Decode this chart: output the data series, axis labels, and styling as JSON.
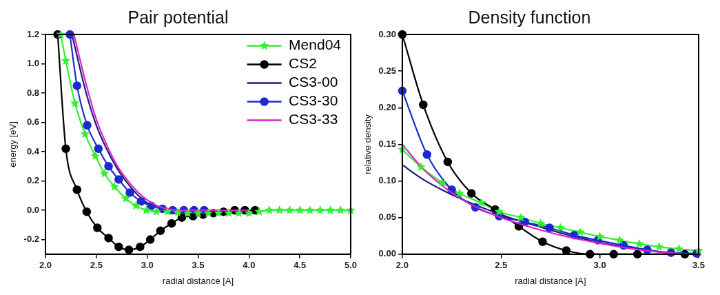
{
  "chart_data": [
    {
      "type": "line",
      "title": "Pair potential",
      "xlabel": "radial distance [A]",
      "ylabel": "energy [eV]",
      "xlim": [
        2,
        5
      ],
      "ylim": [
        -0.3,
        1.2
      ],
      "xticks": [
        {
          "value": 2,
          "label": "2.0"
        },
        {
          "value": 2.5,
          "label": "2.5"
        },
        {
          "value": 3,
          "label": "3.0"
        },
        {
          "value": 3.5,
          "label": "3.5"
        },
        {
          "value": 4,
          "label": "4.0"
        },
        {
          "value": 4.5,
          "label": "4.5"
        },
        {
          "value": 5,
          "label": "5.0"
        }
      ],
      "yticks": [
        {
          "value": -0.2,
          "label": "-0.2"
        },
        {
          "value": 0,
          "label": "0.0"
        },
        {
          "value": 0.2,
          "label": "0.2"
        },
        {
          "value": 0.4,
          "label": "0.4"
        },
        {
          "value": 0.6,
          "label": "0.6"
        },
        {
          "value": 0.8,
          "label": "0.8"
        },
        {
          "value": 1,
          "label": "1.0"
        },
        {
          "value": 1.2,
          "label": "1.2"
        }
      ],
      "grid": false,
      "legend": "top right",
      "series": [
        {
          "name": "Mend04",
          "color": "#33ee33",
          "marker": "star",
          "x": [
            2.15,
            2.2,
            2.29,
            2.39,
            2.49,
            2.58,
            2.68,
            2.79,
            2.89,
            2.99,
            3.09,
            3.2,
            3.3,
            3.4,
            3.5,
            3.6,
            3.7,
            3.8,
            3.9,
            4.0,
            4.1,
            4.2,
            4.3,
            4.4,
            4.5,
            4.6,
            4.7,
            4.8,
            4.9,
            5.0
          ],
          "values": [
            1.2,
            1.02,
            0.73,
            0.52,
            0.37,
            0.25,
            0.16,
            0.08,
            0.03,
            0.0,
            -0.01,
            -0.01,
            -0.015,
            -0.02,
            -0.02,
            -0.02,
            -0.02,
            -0.02,
            -0.02,
            -0.02,
            -0.01,
            0,
            0,
            0,
            0,
            0,
            0,
            0,
            0,
            0
          ]
        },
        {
          "name": "CS2",
          "color": "#000000",
          "marker": "circle",
          "x": [
            2.12,
            2.2,
            2.31,
            2.405,
            2.51,
            2.62,
            2.72,
            2.82,
            2.93,
            3.03,
            3.13,
            3.24,
            3.34,
            3.45,
            3.55,
            3.65,
            3.75,
            3.86,
            3.96,
            4.06
          ],
          "values": [
            1.2,
            0.42,
            0.14,
            -0.01,
            -0.12,
            -0.19,
            -0.25,
            -0.27,
            -0.25,
            -0.2,
            -0.14,
            -0.09,
            -0.05,
            -0.04,
            -0.03,
            -0.02,
            -0.01,
            0,
            0,
            0
          ]
        },
        {
          "name": "CS3-00",
          "color": "#1a1a80",
          "marker": "none",
          "x": [
            2.26,
            2.4,
            2.5,
            2.6,
            2.7,
            2.8,
            2.9,
            3.0,
            3.1,
            3.2,
            3.3,
            4.0
          ],
          "values": [
            1.2,
            0.8,
            0.58,
            0.42,
            0.29,
            0.19,
            0.11,
            0.05,
            0.02,
            0.005,
            0,
            0
          ]
        },
        {
          "name": "CS3-30",
          "color": "#1a2ad0",
          "marker": "circle",
          "x": [
            2.24,
            2.31,
            2.41,
            2.52,
            2.62,
            2.72,
            2.83,
            2.94,
            3.04,
            3.15,
            3.25,
            3.36,
            3.46,
            3.56
          ],
          "values": [
            1.2,
            0.85,
            0.58,
            0.42,
            0.3,
            0.21,
            0.12,
            0.06,
            0.03,
            0.01,
            0,
            0,
            0,
            0
          ]
        },
        {
          "name": "CS3-33",
          "color": "#dd22cc",
          "marker": "none",
          "x": [
            2.28,
            2.4,
            2.5,
            2.6,
            2.7,
            2.8,
            2.9,
            3.0,
            3.1,
            3.2,
            3.3,
            4.0
          ],
          "values": [
            1.2,
            0.86,
            0.62,
            0.45,
            0.31,
            0.21,
            0.13,
            0.07,
            0.03,
            0.01,
            0,
            0
          ]
        }
      ]
    },
    {
      "type": "line",
      "title": "Density function",
      "xlabel": "radial distance [A]",
      "ylabel": "relative density",
      "xlim": [
        2,
        3.5
      ],
      "ylim": [
        0,
        0.3
      ],
      "xticks": [
        {
          "value": 2,
          "label": "2.0"
        },
        {
          "value": 2.5,
          "label": "2.5"
        },
        {
          "value": 3,
          "label": "3.0"
        },
        {
          "value": 3.5,
          "label": "3.5"
        }
      ],
      "yticks": [
        {
          "value": 0,
          "label": "0.00"
        },
        {
          "value": 0.05,
          "label": "0.05"
        },
        {
          "value": 0.1,
          "label": "0.10"
        },
        {
          "value": 0.15,
          "label": "0.15"
        },
        {
          "value": 0.2,
          "label": "0.20"
        },
        {
          "value": 0.25,
          "label": "0.25"
        },
        {
          "value": 0.3,
          "label": "0.30"
        }
      ],
      "grid": false,
      "series": [
        {
          "color": "#33ee33",
          "marker": "star",
          "x": [
            2.0,
            2.095,
            2.2,
            2.29,
            2.4,
            2.49,
            2.6,
            2.7,
            2.8,
            2.9,
            3.0,
            3.1,
            3.2,
            3.3,
            3.4,
            3.5
          ],
          "values": [
            0.143,
            0.119,
            0.098,
            0.083,
            0.07,
            0.058,
            0.05,
            0.042,
            0.036,
            0.03,
            0.024,
            0.019,
            0.014,
            0.01,
            0.007,
            0.005
          ]
        },
        {
          "color": "#000000",
          "marker": "circle",
          "x": [
            2.0,
            2.106,
            2.23,
            2.35,
            2.47,
            2.59,
            2.71,
            2.83,
            2.95,
            3.07,
            3.19,
            3.43
          ],
          "values": [
            0.3,
            0.204,
            0.126,
            0.083,
            0.061,
            0.038,
            0.017,
            0.005,
            0,
            0,
            0,
            0
          ]
        },
        {
          "color": "#1a1a80",
          "marker": "none",
          "x": [
            2.0,
            2.1,
            2.2,
            2.3,
            2.4,
            2.5,
            2.6,
            2.7,
            2.8,
            2.9,
            3.0,
            3.1,
            3.2,
            3.3,
            3.4,
            3.5
          ],
          "values": [
            0.122,
            0.103,
            0.088,
            0.075,
            0.064,
            0.054,
            0.045,
            0.037,
            0.029,
            0.022,
            0.016,
            0.011,
            0.007,
            0.003,
            0.001,
            0
          ]
        },
        {
          "color": "#1a2ad0",
          "marker": "circle",
          "x": [
            2.0,
            2.125,
            2.25,
            2.37,
            2.49,
            2.62,
            2.745,
            2.87,
            2.99,
            3.12,
            3.24,
            3.36,
            3.49
          ],
          "values": [
            0.223,
            0.136,
            0.088,
            0.064,
            0.052,
            0.044,
            0.036,
            0.026,
            0.019,
            0.012,
            0.006,
            0.002,
            0.001
          ]
        },
        {
          "color": "#dd22cc",
          "marker": "none",
          "x": [
            2.0,
            2.1,
            2.2,
            2.3,
            2.4,
            2.5,
            2.6,
            2.7,
            2.8,
            2.9,
            3.0,
            3.1,
            3.2,
            3.3,
            3.4,
            3.5
          ],
          "values": [
            0.15,
            0.118,
            0.094,
            0.075,
            0.061,
            0.05,
            0.041,
            0.033,
            0.026,
            0.02,
            0.015,
            0.01,
            0.006,
            0.003,
            0.001,
            0
          ]
        }
      ]
    }
  ]
}
